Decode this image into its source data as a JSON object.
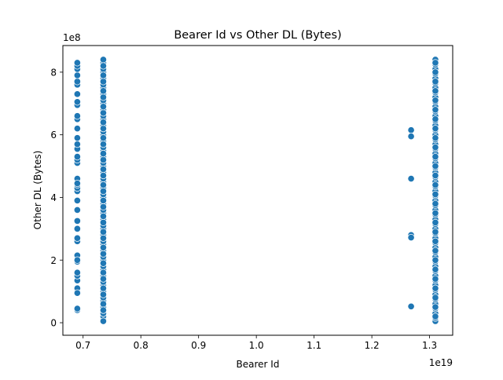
{
  "chart_data": {
    "type": "scatter",
    "title": "Bearer Id vs Other DL (Bytes)",
    "xlabel": "Bearer Id",
    "ylabel": "Other DL (Bytes)",
    "x_offset_label": "1e19",
    "y_offset_label": "1e8",
    "xlim": [
      0.665,
      1.34
    ],
    "ylim": [
      -0.4,
      8.85
    ],
    "x_ticks": [
      0.7,
      0.8,
      0.9,
      1.0,
      1.1,
      1.2,
      1.3
    ],
    "x_tick_labels": [
      "0.7",
      "0.8",
      "0.9",
      "1.0",
      "1.1",
      "1.2",
      "1.3"
    ],
    "y_ticks": [
      0,
      2,
      4,
      6,
      8
    ],
    "y_tick_labels": [
      "0",
      "2",
      "4",
      "6",
      "8"
    ],
    "grid": false,
    "marker_color": "#1f77b4",
    "marker_edge_color": "#ffffff",
    "series": [
      {
        "x": [
          0.69,
          0.69,
          0.69,
          0.69,
          0.69,
          0.69,
          0.69,
          0.69,
          0.69,
          0.69,
          0.69,
          0.69,
          0.69,
          0.69,
          0.69,
          0.69,
          0.69,
          0.69,
          0.69,
          0.69,
          0.69,
          0.69,
          0.69,
          0.69,
          0.69,
          0.69,
          0.69,
          0.69,
          0.69,
          0.69,
          0.69,
          0.69,
          0.69,
          0.69,
          0.69,
          0.69,
          0.69,
          0.69,
          0.69,
          0.69,
          0.735,
          0.735,
          0.735,
          0.735,
          0.735,
          0.735,
          0.735,
          0.735,
          0.735,
          0.735,
          0.735,
          0.735,
          0.735,
          0.735,
          0.735,
          0.735,
          0.735,
          0.735,
          0.735,
          0.735,
          0.735,
          0.735,
          0.735,
          0.735,
          0.735,
          0.735,
          0.735,
          0.735,
          0.735,
          0.735,
          0.735,
          0.735,
          0.735,
          0.735,
          0.735,
          0.735,
          0.735,
          0.735,
          0.735,
          0.735,
          0.735,
          0.735,
          0.735,
          0.735,
          0.735,
          0.735,
          0.735,
          0.735,
          0.735,
          0.735,
          0.735,
          0.735,
          0.735,
          0.735,
          0.735,
          0.735,
          0.735,
          0.735,
          0.735,
          0.735,
          0.735,
          0.735,
          0.735,
          0.735,
          0.735,
          0.735,
          0.735,
          0.735,
          0.735,
          0.735,
          0.735,
          0.735,
          0.735,
          0.735,
          0.735,
          0.735,
          0.735,
          0.735,
          0.735,
          0.735,
          0.735,
          0.735,
          0.735,
          0.735,
          0.735,
          1.268,
          1.268,
          1.268,
          1.268,
          1.268,
          1.268,
          1.31,
          1.31,
          1.31,
          1.31,
          1.31,
          1.31,
          1.31,
          1.31,
          1.31,
          1.31,
          1.31,
          1.31,
          1.31,
          1.31,
          1.31,
          1.31,
          1.31,
          1.31,
          1.31,
          1.31,
          1.31,
          1.31,
          1.31,
          1.31,
          1.31,
          1.31,
          1.31,
          1.31,
          1.31,
          1.31,
          1.31,
          1.31,
          1.31,
          1.31,
          1.31,
          1.31,
          1.31,
          1.31,
          1.31,
          1.31,
          1.31,
          1.31,
          1.31,
          1.31,
          1.31,
          1.31,
          1.31,
          1.31,
          1.31,
          1.31,
          1.31,
          1.31,
          1.31,
          1.31,
          1.31,
          1.31,
          1.31,
          1.31,
          1.31,
          1.31,
          1.31,
          1.31,
          1.31,
          1.31,
          1.31,
          1.31,
          1.31,
          1.31,
          1.31,
          1.31,
          1.31,
          1.31,
          1.31,
          1.31,
          1.31,
          1.31,
          1.31,
          1.31,
          1.31,
          1.31,
          1.31,
          1.31,
          1.31,
          1.31,
          1.31
        ],
        "y": [
          0.4,
          0.45,
          1.0,
          1.1,
          1.35,
          1.5,
          1.6,
          1.95,
          2.15,
          2.6,
          2.7,
          3.0,
          3.25,
          3.6,
          4.2,
          4.3,
          4.4,
          4.6,
          5.1,
          5.2,
          5.3,
          5.55,
          5.7,
          5.9,
          6.2,
          6.5,
          6.95,
          7.05,
          7.3,
          7.6,
          7.7,
          7.9,
          8.1,
          8.2,
          8.3,
          3.9,
          0.95,
          2.0,
          4.45,
          6.6,
          0.1,
          0.2,
          0.3,
          0.5,
          0.7,
          0.8,
          1.0,
          1.2,
          1.3,
          1.5,
          1.7,
          1.8,
          2.0,
          2.1,
          2.3,
          2.5,
          2.6,
          2.8,
          3.0,
          3.1,
          3.3,
          3.5,
          3.6,
          3.8,
          4.0,
          4.1,
          4.3,
          4.5,
          4.6,
          4.8,
          5.0,
          5.1,
          5.3,
          5.5,
          5.6,
          5.8,
          6.0,
          6.1,
          6.3,
          6.5,
          6.6,
          6.8,
          7.0,
          7.1,
          7.3,
          7.5,
          7.6,
          7.8,
          8.0,
          8.1,
          8.3,
          8.4,
          0.6,
          1.1,
          1.6,
          2.2,
          2.7,
          3.2,
          3.7,
          4.2,
          4.7,
          5.2,
          5.7,
          6.2,
          6.7,
          7.2,
          7.7,
          8.2,
          0.4,
          0.9,
          1.4,
          1.9,
          2.4,
          2.9,
          3.4,
          3.9,
          4.4,
          4.9,
          5.4,
          5.9,
          6.4,
          6.9,
          7.4,
          7.9,
          0.05,
          6.15,
          5.95,
          4.6,
          2.8,
          2.72,
          0.52,
          0.05,
          0.15,
          0.3,
          0.45,
          0.6,
          0.75,
          0.9,
          1.05,
          1.2,
          1.35,
          1.5,
          1.65,
          1.8,
          1.95,
          2.1,
          2.25,
          2.4,
          2.55,
          2.7,
          2.85,
          3.0,
          3.15,
          3.3,
          3.45,
          3.6,
          3.75,
          3.9,
          4.05,
          4.2,
          4.35,
          4.5,
          4.65,
          4.8,
          4.95,
          5.1,
          5.25,
          5.4,
          5.55,
          5.7,
          5.85,
          6.0,
          6.15,
          6.3,
          6.45,
          6.6,
          6.75,
          6.9,
          7.05,
          7.2,
          7.35,
          7.5,
          7.65,
          7.8,
          7.95,
          8.1,
          8.25,
          8.4,
          0.2,
          0.5,
          0.8,
          1.1,
          1.4,
          1.7,
          2.0,
          2.3,
          2.6,
          2.9,
          3.2,
          3.5,
          3.8,
          4.1,
          4.4,
          4.7,
          5.0,
          5.3,
          5.6,
          5.9,
          6.2,
          6.5,
          6.8,
          7.1,
          7.4,
          7.7,
          8.0,
          8.3
        ]
      }
    ]
  }
}
